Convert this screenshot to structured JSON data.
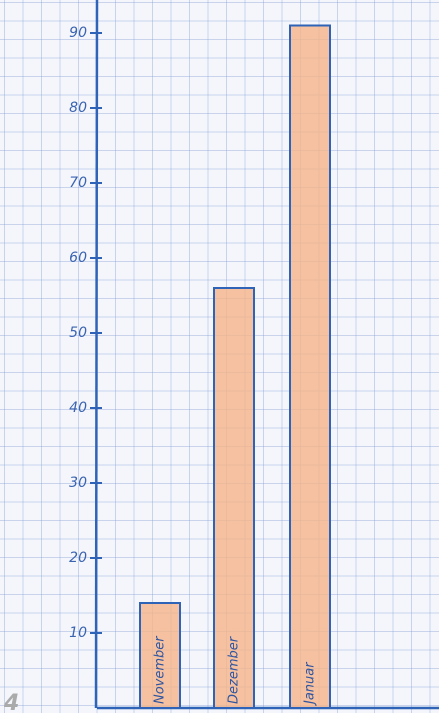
{
  "chart_data": {
    "type": "bar",
    "categories": [
      "November",
      "Dezember",
      "Januar"
    ],
    "values": [
      14,
      56,
      91
    ],
    "color": "#f5b48a",
    "outline": "#2f63b8",
    "ylim": [
      0,
      94
    ],
    "yticks": [
      10,
      20,
      30,
      40,
      50,
      60,
      70,
      80,
      90
    ],
    "page_number": "4"
  }
}
